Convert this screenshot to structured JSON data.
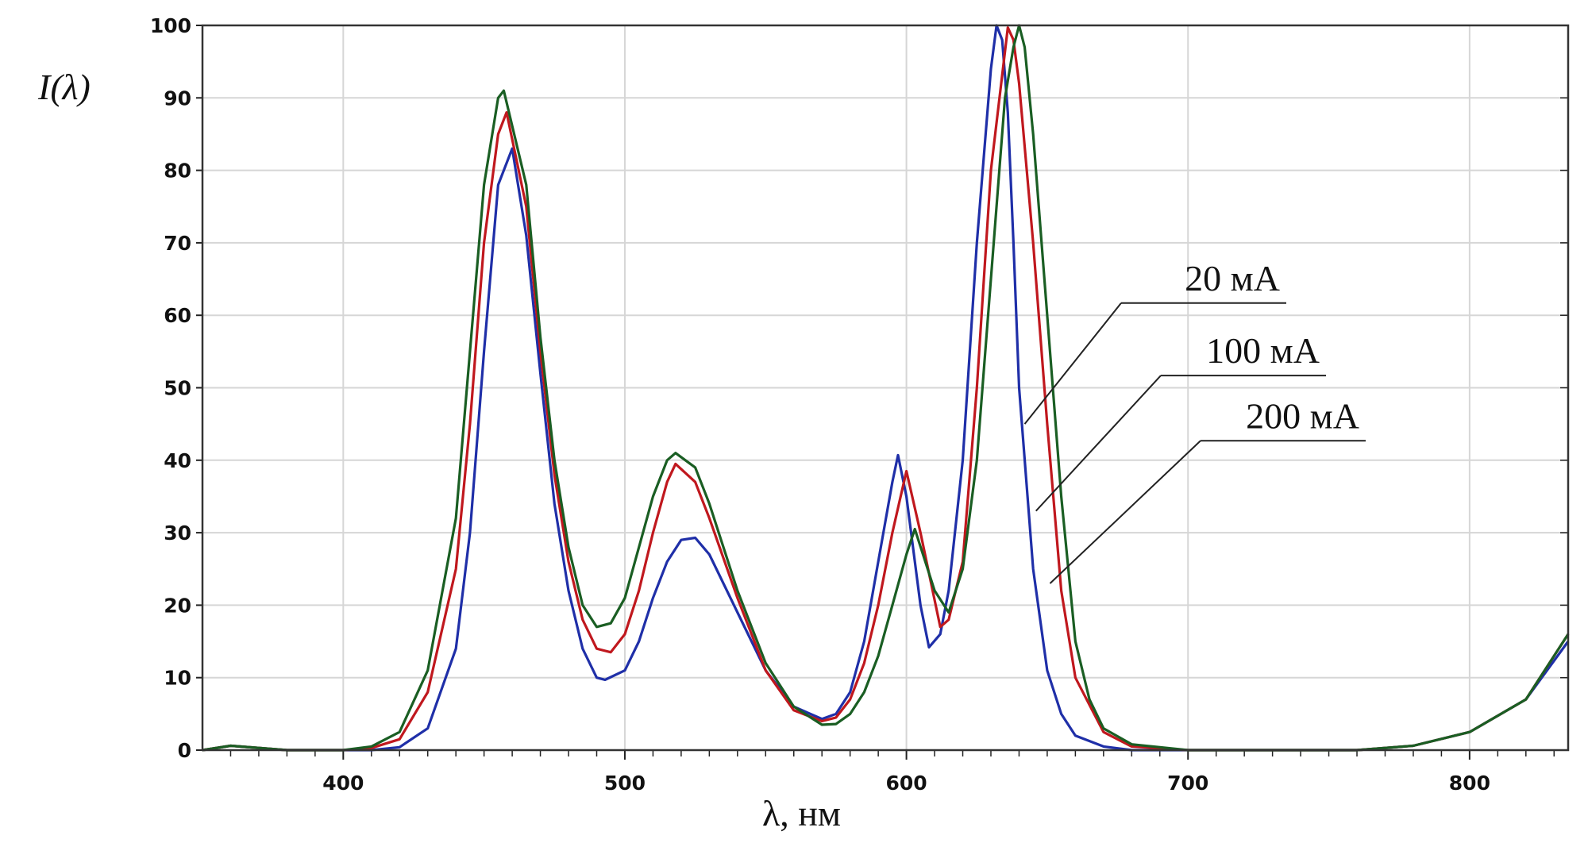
{
  "chart_data": {
    "type": "line",
    "ylabel": "I(λ)",
    "xlabel": "λ, нм",
    "xlim": [
      350,
      835
    ],
    "ylim": [
      0,
      100
    ],
    "x_ticks": [
      400,
      500,
      600,
      700,
      800
    ],
    "y_ticks": [
      0,
      10,
      20,
      30,
      40,
      50,
      60,
      70,
      80,
      90,
      100
    ],
    "grid": true,
    "legend": "right, leader lines pointing to curves",
    "series": [
      {
        "name": "20 мА",
        "color": "#1f2fa8",
        "x": [
          350,
          360,
          380,
          400,
          410,
          420,
          430,
          440,
          445,
          450,
          455,
          460,
          465,
          470,
          475,
          480,
          485,
          490,
          493,
          500,
          505,
          510,
          515,
          520,
          525,
          530,
          540,
          550,
          560,
          570,
          575,
          580,
          585,
          590,
          595,
          597,
          600,
          605,
          608,
          612,
          615,
          620,
          625,
          630,
          632,
          634,
          636,
          638,
          640,
          645,
          650,
          655,
          660,
          670,
          680,
          700,
          750,
          760,
          780,
          800,
          820,
          835
        ],
        "y": [
          0,
          0.6,
          0,
          0,
          0,
          0.4,
          3,
          14,
          30,
          55,
          78,
          83,
          71,
          52,
          34,
          22,
          14,
          10,
          9.7,
          11,
          15,
          21,
          26,
          29,
          29.3,
          27,
          19,
          11,
          6,
          4.3,
          5,
          8,
          15,
          26,
          37,
          40.7,
          35,
          20,
          14.2,
          16,
          22,
          40,
          70,
          94,
          100,
          98,
          88,
          70,
          50,
          25,
          11,
          5,
          2,
          0.5,
          0,
          0,
          0,
          0,
          0.6,
          2.5,
          7,
          15
        ]
      },
      {
        "name": "100 мА",
        "color": "#c0181e",
        "x": [
          350,
          360,
          380,
          400,
          410,
          420,
          430,
          440,
          445,
          450,
          455,
          458,
          465,
          470,
          475,
          480,
          485,
          490,
          495,
          500,
          505,
          510,
          515,
          518,
          525,
          530,
          540,
          550,
          560,
          570,
          575,
          580,
          585,
          590,
          595,
          600,
          605,
          612,
          615,
          620,
          625,
          630,
          636,
          638,
          640,
          645,
          650,
          655,
          660,
          670,
          680,
          700,
          750,
          760,
          780,
          800,
          820,
          835
        ],
        "y": [
          0,
          0.6,
          0,
          0,
          0.3,
          1.5,
          8,
          25,
          45,
          70,
          85,
          88,
          75,
          55,
          38,
          26,
          18,
          14,
          13.5,
          16,
          22,
          30,
          37,
          39.5,
          37,
          32,
          21,
          11,
          5.5,
          4,
          4.5,
          7,
          12,
          20,
          30,
          38.5,
          30,
          17,
          18,
          26,
          50,
          80,
          99.7,
          98,
          92,
          70,
          45,
          22,
          10,
          2.5,
          0.5,
          0,
          0,
          0,
          0.6,
          2.5,
          7,
          16
        ]
      },
      {
        "name": "200 мА",
        "color": "#1a5e23",
        "x": [
          350,
          360,
          380,
          400,
          410,
          420,
          430,
          440,
          445,
          450,
          455,
          457,
          465,
          470,
          475,
          480,
          485,
          490,
          495,
          500,
          505,
          510,
          515,
          518,
          525,
          530,
          540,
          550,
          560,
          570,
          575,
          580,
          585,
          590,
          595,
          600,
          603,
          610,
          615,
          620,
          625,
          630,
          635,
          638,
          640,
          642,
          645,
          650,
          655,
          660,
          665,
          670,
          680,
          700,
          750,
          760,
          780,
          800,
          820,
          835
        ],
        "y": [
          0,
          0.6,
          0,
          0,
          0.5,
          2.5,
          11,
          32,
          55,
          78,
          90,
          91,
          78,
          57,
          40,
          28,
          20,
          17,
          17.5,
          21,
          28,
          35,
          40,
          41,
          39,
          34,
          22,
          12,
          6,
          3.5,
          3.6,
          5,
          8,
          13,
          20,
          27,
          30.5,
          22,
          19,
          25,
          40,
          65,
          90,
          97,
          100,
          97,
          85,
          60,
          35,
          15,
          7,
          3,
          0.8,
          0,
          0,
          0,
          0.6,
          2.5,
          7,
          16
        ]
      }
    ]
  }
}
